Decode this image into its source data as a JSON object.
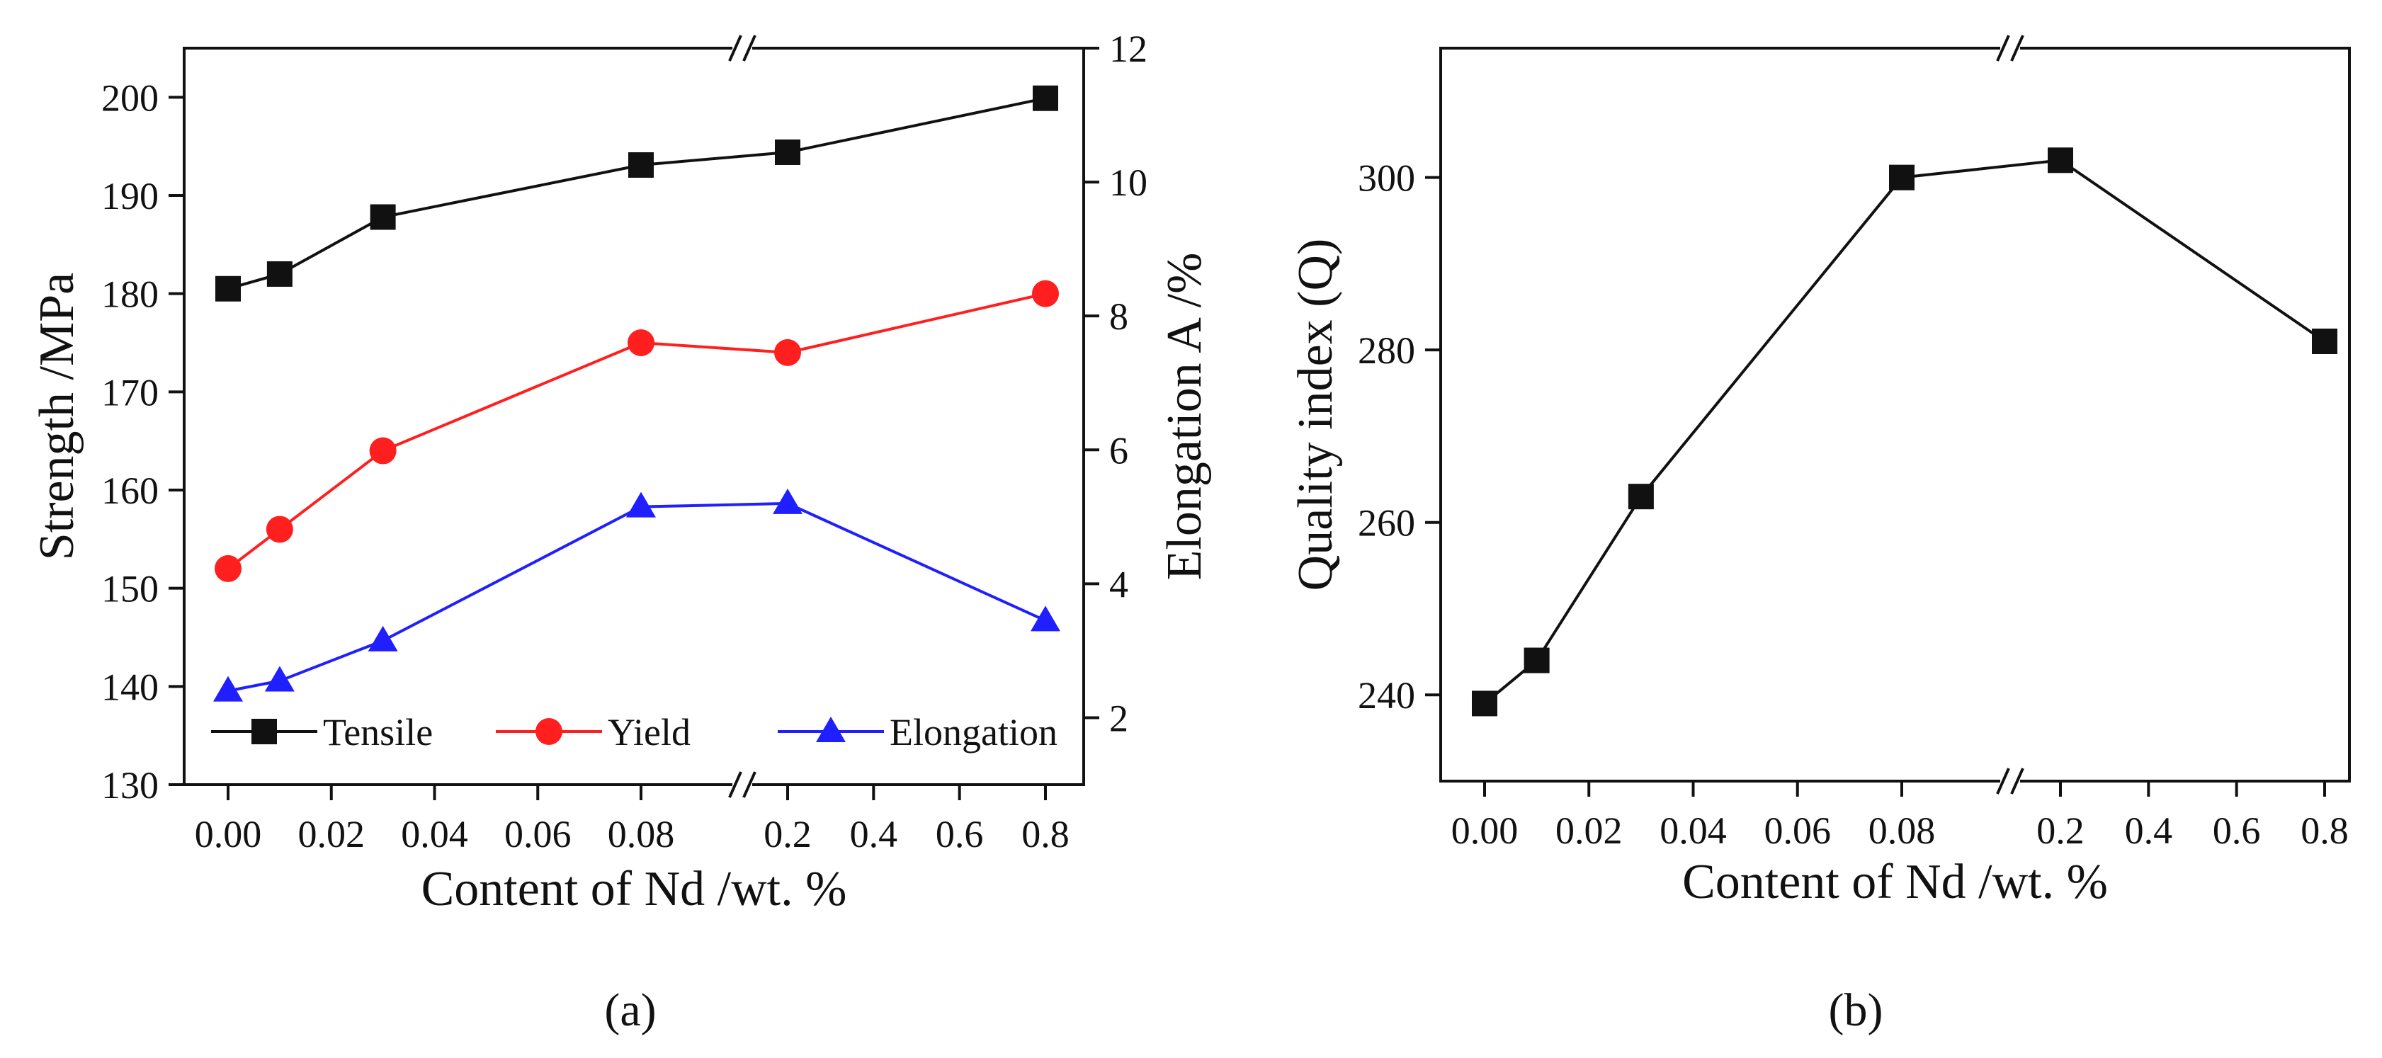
{
  "chart_data": [
    {
      "type": "line",
      "panel": "a",
      "caption": "(a)",
      "xlabel": "Content of Nd /wt. %",
      "ylabel_left": "Strength /MPa",
      "ylabel_right": "Elongation A /%",
      "x_categories": [
        "0.00",
        "0.01",
        "0.03",
        "0.08",
        "0.2",
        "0.8"
      ],
      "x_ticks_left": [
        "0.00",
        "0.02",
        "0.04",
        "0.06",
        "0.08"
      ],
      "x_ticks_right": [
        "0.2",
        "0.4",
        "0.6",
        "0.8"
      ],
      "ylim_left": [
        130,
        205
      ],
      "yticks_left": [
        "130",
        "140",
        "150",
        "160",
        "170",
        "180",
        "190",
        "200"
      ],
      "ylim_right": [
        1,
        12
      ],
      "yticks_right": [
        "2",
        "4",
        "6",
        "8",
        "10",
        "12"
      ],
      "legend_position": "bottom",
      "series": [
        {
          "name": "Tensile",
          "axis": "left",
          "marker": "square",
          "color": "#111111",
          "x": [
            0.0,
            0.01,
            0.03,
            0.08,
            0.2,
            0.8
          ],
          "values": [
            180.5,
            182.0,
            187.8,
            193.1,
            194.4,
            199.9
          ]
        },
        {
          "name": "Yield",
          "axis": "left",
          "marker": "circle",
          "color": "#ff1f1f",
          "x": [
            0.0,
            0.01,
            0.03,
            0.08,
            0.2,
            0.8
          ],
          "values": [
            152.0,
            156.0,
            164.0,
            175.0,
            174.0,
            180.0
          ]
        },
        {
          "name": "Elongation",
          "axis": "right",
          "marker": "triangle",
          "color": "#1f1fff",
          "x": [
            0.0,
            0.01,
            0.03,
            0.08,
            0.2,
            0.8
          ],
          "values": [
            2.4,
            2.55,
            3.15,
            5.15,
            5.2,
            3.45
          ]
        }
      ]
    },
    {
      "type": "line",
      "panel": "b",
      "caption": "(b)",
      "xlabel": "Content of Nd /wt. %",
      "ylabel": "Quality index (Q)",
      "x_categories": [
        "0.00",
        "0.01",
        "0.03",
        "0.08",
        "0.2",
        "0.8"
      ],
      "x_ticks_left": [
        "0.00",
        "0.02",
        "0.04",
        "0.06",
        "0.08"
      ],
      "x_ticks_right": [
        "0.2",
        "0.4",
        "0.6",
        "0.8"
      ],
      "ylim": [
        230,
        315
      ],
      "yticks": [
        "240",
        "260",
        "280",
        "300"
      ],
      "series": [
        {
          "name": "Quality index",
          "marker": "square",
          "color": "#111111",
          "x": [
            0.0,
            0.01,
            0.03,
            0.08,
            0.2,
            0.8
          ],
          "values": [
            239,
            244,
            263,
            300,
            302,
            281
          ]
        }
      ]
    }
  ]
}
